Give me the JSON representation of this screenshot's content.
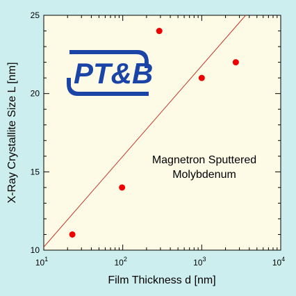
{
  "chart_data": {
    "type": "scatter",
    "title": "",
    "xlabel": "Film Thickness d [nm]",
    "ylabel": "X-Ray Crystallite Size L [nm]",
    "xscale": "log",
    "yscale": "linear",
    "xlim": [
      10,
      10000
    ],
    "ylim": [
      10,
      25
    ],
    "x_ticks": [
      {
        "value": 10,
        "base": "10",
        "exp": "1"
      },
      {
        "value": 100,
        "base": "10",
        "exp": "2"
      },
      {
        "value": 1000,
        "base": "10",
        "exp": "3"
      },
      {
        "value": 10000,
        "base": "10",
        "exp": "4"
      }
    ],
    "y_ticks": [
      {
        "value": 10,
        "label": "10"
      },
      {
        "value": 15,
        "label": "15"
      },
      {
        "value": 20,
        "label": "20"
      },
      {
        "value": 25,
        "label": "25"
      }
    ],
    "grid": false,
    "plot_background": "#fdfbe6",
    "page_background": "#cdeeee",
    "point_color": "#ee0000",
    "fit_line_color": "#c0392b",
    "points": [
      {
        "x": 23,
        "y": 11
      },
      {
        "x": 98,
        "y": 14
      },
      {
        "x": 290,
        "y": 24
      },
      {
        "x": 1000,
        "y": 21
      },
      {
        "x": 2700,
        "y": 22
      }
    ],
    "fit_line": {
      "x": [
        10,
        3600
      ],
      "y": [
        10.2,
        25
      ]
    },
    "annotation": [
      "Magnetron Sputtered",
      "Molybdenum"
    ],
    "logo": {
      "text": "PT&B",
      "color": "#1a45a6"
    }
  }
}
